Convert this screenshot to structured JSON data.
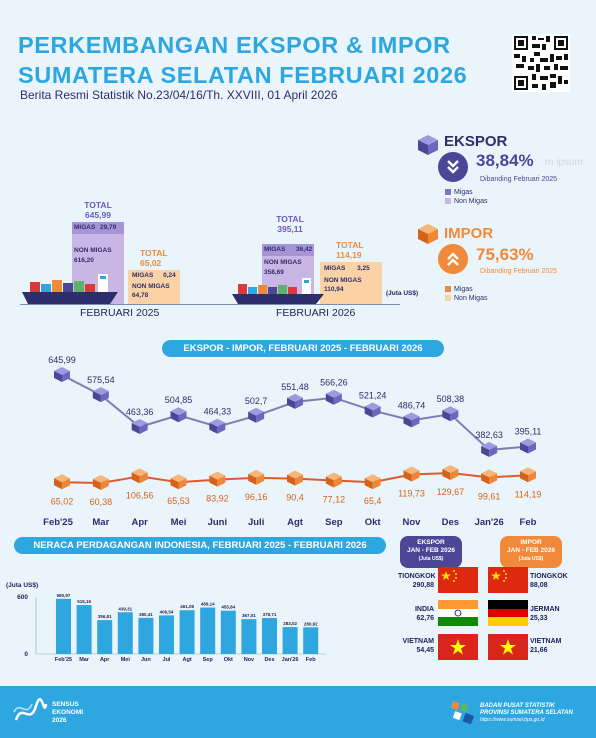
{
  "header": {
    "title_line1": "PERKEMBANGAN EKSPOR & IMPOR",
    "title_line2": "SUMATERA SELATAN FEBRUARI 2026",
    "subtitle": "Berita Resmi Statistik No.23/04/16/Th. XXVIII, 01 April 2026"
  },
  "ekspor_card": {
    "label": "EKSPOR",
    "pct": "38,84%",
    "caption": "Dibanding Februari 2025",
    "ghost": "m ipsum",
    "legend": [
      "Migas",
      "Non Migas"
    ]
  },
  "impor_card": {
    "label": "IMPOR",
    "pct": "75,63%",
    "caption": "Dibanding Februari 2025",
    "legend": [
      "Migas",
      "Non Migas"
    ]
  },
  "compare": {
    "unit": "(Juta US$)",
    "periods": [
      {
        "label": "FEBRUARI 2025",
        "ekspor": {
          "total_label": "TOTAL",
          "total": "645,99",
          "migas_label": "MIGAS",
          "migas": "29,79",
          "nonmigas_label": "NON MIGAS",
          "nonmigas": "616,20"
        },
        "impor": {
          "total_label": "TOTAL",
          "total": "65,02",
          "migas_label": "MIGAS",
          "migas": "0,24",
          "nonmigas_label": "NON MIGAS",
          "nonmigas": "64,78"
        }
      },
      {
        "label": "FEBRUARI 2026",
        "ekspor": {
          "total_label": "TOTAL",
          "total": "395,11",
          "migas_label": "MIGAS",
          "migas": "36,42",
          "nonmigas_label": "NON MIGAS",
          "nonmigas": "358,69"
        },
        "impor": {
          "total_label": "TOTAL",
          "total": "114,19",
          "migas_label": "MIGAS",
          "migas": "3,25",
          "nonmigas_label": "NON MIGAS",
          "nonmigas": "110,94"
        }
      }
    ]
  },
  "trend": {
    "title": "EKSPOR - IMPOR, FEBRUARI 2025 -  FEBRUARI 2026"
  },
  "balance": {
    "title": "NERACA PERDAGANGAN INDONESIA, FEBRUARI 2025 - FEBRUARI 2026",
    "ylabel": "(Juta US$)"
  },
  "partners": {
    "ekspor_head": "EKSPOR",
    "ekspor_sub": "JAN - FEB 2026",
    "ekspor_unit": "(Juta US$)",
    "impor_head": "IMPOR",
    "impor_sub": "JAN - FEB 2026",
    "impor_unit": "(Juta US$)",
    "ekspor": [
      {
        "country": "TIONGKOK",
        "value": "290,88"
      },
      {
        "country": "INDIA",
        "value": "62,76"
      },
      {
        "country": "VIETNAM",
        "value": "54,45"
      }
    ],
    "impor": [
      {
        "country": "TIONGKOK",
        "value": "88,08"
      },
      {
        "country": "JERMAN",
        "value": "25,33"
      },
      {
        "country": "VIETNAM",
        "value": "21,66"
      }
    ]
  },
  "footer": {
    "sensus_line1": "SENSUS",
    "sensus_line2": "EKONOMI",
    "sensus_line3": "2026",
    "bps_line1": "BADAN PUSAT STATISTIK",
    "bps_line2": "PROVINSI SUMATERA SELATAN",
    "bps_url": "https://www.sumsel.bps.go.id"
  },
  "colors": {
    "accent": "#2ea7e0",
    "ekspor": "#7b78c8",
    "ekspor_light": "#c9b6e4",
    "impor": "#f08a3a",
    "impor_light": "#fbd2a6",
    "bar": "#2ea7e0"
  },
  "chart_data": [
    {
      "type": "line",
      "title": "EKSPOR - IMPOR, FEBRUARI 2025 -  FEBRUARI 2026",
      "categories": [
        "Feb'25",
        "Mar",
        "Apr",
        "Mei",
        "Juni",
        "Juli",
        "Agt",
        "Sep",
        "Okt",
        "Nov",
        "Des",
        "Jan'26",
        "Feb"
      ],
      "series": [
        {
          "values": [
            645.99,
            575.54,
            463.36,
            504.85,
            464.33,
            502.7,
            551.48,
            566.26,
            521.24,
            486.74,
            508.38,
            382.63,
            395.11
          ],
          "labels": [
            "645,99",
            "575,54",
            "463,36",
            "504,85",
            "464,33",
            "502,7",
            "551,48",
            "566,26",
            "521,24",
            "486,74",
            "508,38",
            "382,63",
            "395,11"
          ]
        },
        {
          "values": [
            65.02,
            60.38,
            106.56,
            65.53,
            83.92,
            96.16,
            90.4,
            77.12,
            65.4,
            119.73,
            129.67,
            99.61,
            114.19
          ],
          "labels": [
            "65,02",
            "60,38",
            "106,56",
            "65,53",
            "83,92",
            "96,16",
            "90,4",
            "77,12",
            "65,4",
            "119,73",
            "129,67",
            "99,61",
            "114,19"
          ]
        }
      ]
    },
    {
      "type": "bar",
      "title": "NERACA PERDAGANGAN INDONESIA, FEBRUARI 2025 - FEBRUARI 2026",
      "ylabel": "(Juta US$)",
      "yticks": [
        "600",
        "0"
      ],
      "ylim": [
        0,
        650
      ],
      "categories": [
        "Feb'25",
        "Mar",
        "Apr",
        "Mei",
        "Jun",
        "Jul",
        "Agt",
        "Sep",
        "Okt",
        "Nov",
        "Des",
        "Jan'26",
        "Feb"
      ],
      "values": [
        580.97,
        515.16,
        356.81,
        439.31,
        380.41,
        406.54,
        461.08,
        489.14,
        455.84,
        367.01,
        378.71,
        283.02,
        280.92
      ],
      "labels": [
        "580,97",
        "515,16",
        "356,81",
        "439,31",
        "380,41",
        "406,54",
        "461,08",
        "489,14",
        "455,84",
        "367,01",
        "378,71",
        "283,02",
        "280,92"
      ]
    }
  ]
}
